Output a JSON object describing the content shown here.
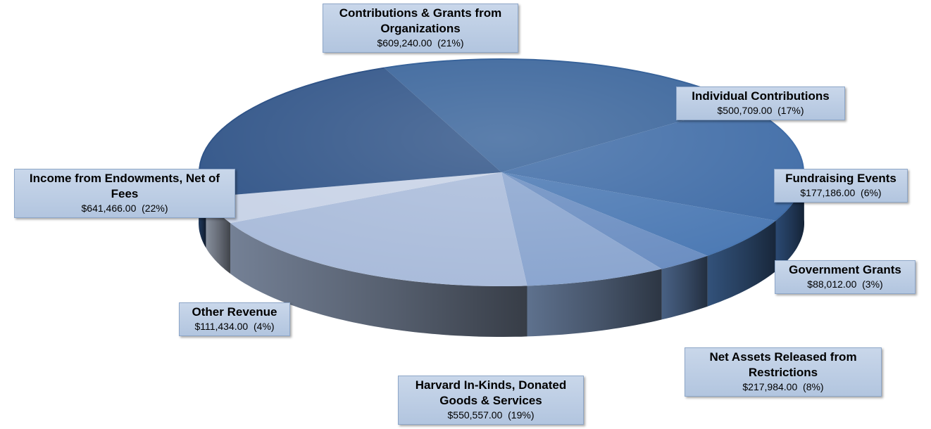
{
  "chart_data": {
    "type": "pie",
    "title": "",
    "slices": [
      {
        "label": "Contributions & Grants from Organizations",
        "value": 609240.0,
        "value_text": "$609,240.00",
        "percent_text": "(21%)",
        "color": "#38639a"
      },
      {
        "label": "Individual Contributions",
        "value": 500709.0,
        "value_text": "$500,709.00",
        "percent_text": "(17%)",
        "color": "#3e6ba6"
      },
      {
        "label": "Fundraising Events",
        "value": 177186.0,
        "value_text": "$177,186.00",
        "percent_text": "(6%)",
        "color": "#4a78b3"
      },
      {
        "label": "Government Grants",
        "value": 88012.0,
        "value_text": "$88,012.00",
        "percent_text": "(3%)",
        "color": "#6a8dc1"
      },
      {
        "label": "Net Assets Released from Restrictions",
        "value": 217984.0,
        "value_text": "$217,984.00",
        "percent_text": "(8%)",
        "color": "#8aa5cf"
      },
      {
        "label": "Harvard In-Kinds, Donated Goods & Services",
        "value": 550557.0,
        "value_text": "$550,557.00",
        "percent_text": "(19%)",
        "color": "#a9bbda"
      },
      {
        "label": "Other Revenue",
        "value": 111434.0,
        "value_text": "$111,434.00",
        "percent_text": "(4%)",
        "color": "#c7d2e6"
      },
      {
        "label": "Income from Endowments, Net of Fees",
        "value": 641466.0,
        "value_text": "$641,466.00",
        "percent_text": "(22%)",
        "color": "#2f5387"
      }
    ]
  }
}
